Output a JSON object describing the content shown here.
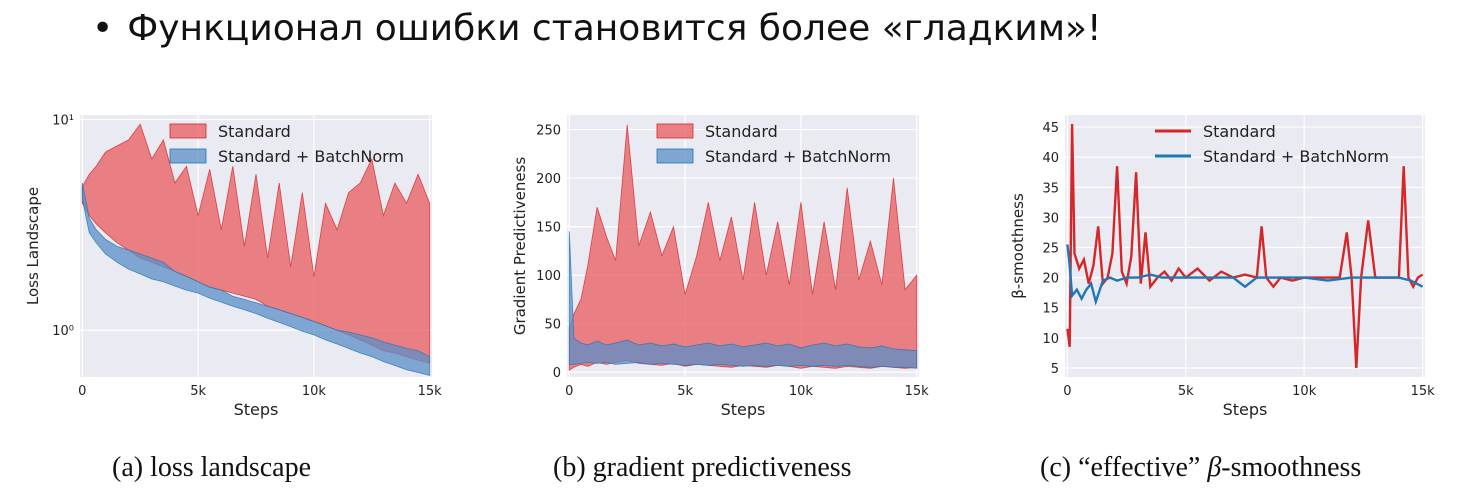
{
  "slide": {
    "bullet": "•",
    "headline": "Функционал ошибки становится более «гладким»!"
  },
  "colors": {
    "standard_fill": "#e8595d",
    "standard_line": "#d62728",
    "bn_fill": "#5b8fc7",
    "bn_line": "#1f77b4",
    "plot_bg": "#eaeaf2",
    "grid": "#ffffff"
  },
  "chart_data": [
    {
      "id": "a",
      "type": "area",
      "ylabel": "Loss Landscape",
      "xlabel": "Steps",
      "yscale": "log",
      "ylim": [
        0.6,
        10.5
      ],
      "xlim": [
        -100,
        15100
      ],
      "x_ticks": [
        0,
        5000,
        10000,
        15000
      ],
      "x_tick_labels": [
        "0",
        "5k",
        "10k",
        "15k"
      ],
      "y_ticks": [
        1,
        10
      ],
      "y_tick_labels": [
        "10⁰",
        "10¹"
      ],
      "legend": {
        "placement": "top-center",
        "entries": [
          "Standard",
          "Standard + BatchNorm"
        ]
      },
      "caption": "(a) loss landscape",
      "series": [
        {
          "name": "Standard",
          "x": [
            0,
            300,
            600,
            1000,
            1500,
            2000,
            2500,
            3000,
            3500,
            4000,
            4500,
            5000,
            5500,
            6000,
            6500,
            7000,
            7500,
            8000,
            8500,
            9000,
            9500,
            10000,
            10500,
            11000,
            11500,
            12000,
            12500,
            13000,
            13500,
            14000,
            14500,
            15000
          ],
          "low": [
            4.0,
            3.5,
            3.2,
            2.9,
            2.6,
            2.4,
            2.2,
            2.1,
            2.0,
            1.9,
            1.8,
            1.7,
            1.6,
            1.55,
            1.5,
            1.45,
            1.4,
            1.3,
            1.25,
            1.2,
            1.15,
            1.1,
            1.05,
            1.0,
            0.95,
            0.9,
            0.85,
            0.8,
            0.78,
            0.75,
            0.72,
            0.7
          ],
          "high": [
            4.8,
            5.5,
            6.0,
            7.0,
            7.5,
            8.0,
            9.5,
            6.5,
            8.0,
            5.0,
            6.0,
            3.5,
            5.8,
            3.0,
            6.0,
            2.5,
            5.5,
            2.2,
            5.0,
            2.0,
            4.5,
            1.8,
            4.0,
            3.0,
            4.5,
            5.0,
            6.5,
            3.5,
            5.0,
            4.0,
            5.5,
            4.0
          ]
        },
        {
          "name": "Standard + BatchNorm",
          "x": [
            0,
            300,
            600,
            1000,
            1500,
            2000,
            2500,
            3000,
            3500,
            4000,
            4500,
            5000,
            5500,
            6000,
            6500,
            7000,
            7500,
            8000,
            8500,
            9000,
            9500,
            10000,
            10500,
            11000,
            11500,
            12000,
            12500,
            13000,
            13500,
            14000,
            14500,
            15000
          ],
          "low": [
            4.2,
            2.9,
            2.6,
            2.3,
            2.1,
            1.95,
            1.85,
            1.75,
            1.7,
            1.62,
            1.55,
            1.5,
            1.42,
            1.36,
            1.3,
            1.25,
            1.2,
            1.14,
            1.09,
            1.04,
            0.99,
            0.95,
            0.9,
            0.86,
            0.82,
            0.78,
            0.75,
            0.71,
            0.68,
            0.65,
            0.63,
            0.61
          ],
          "high": [
            5.0,
            3.4,
            3.0,
            2.7,
            2.5,
            2.4,
            2.3,
            2.2,
            2.1,
            1.9,
            1.8,
            1.7,
            1.6,
            1.55,
            1.45,
            1.4,
            1.35,
            1.3,
            1.25,
            1.2,
            1.15,
            1.1,
            1.05,
            1.0,
            0.98,
            0.95,
            0.92,
            0.88,
            0.85,
            0.82,
            0.8,
            0.75
          ]
        }
      ]
    },
    {
      "id": "b",
      "type": "area",
      "ylabel": "Gradient Predictiveness",
      "xlabel": "Steps",
      "ylim": [
        -5,
        265
      ],
      "xlim": [
        -100,
        15100
      ],
      "x_ticks": [
        0,
        5000,
        10000,
        15000
      ],
      "x_tick_labels": [
        "0",
        "5k",
        "10k",
        "15k"
      ],
      "y_ticks": [
        0,
        50,
        100,
        150,
        200,
        250
      ],
      "y_tick_labels": [
        "0",
        "50",
        "100",
        "150",
        "200",
        "250"
      ],
      "legend": {
        "placement": "top-center",
        "entries": [
          "Standard",
          "Standard + BatchNorm"
        ]
      },
      "caption": "(b) gradient predictiveness",
      "series": [
        {
          "name": "Standard",
          "x": [
            0,
            200,
            500,
            800,
            1200,
            1600,
            2000,
            2500,
            3000,
            3500,
            4000,
            4500,
            5000,
            5500,
            6000,
            6500,
            7000,
            7500,
            8000,
            8500,
            9000,
            9500,
            10000,
            10500,
            11000,
            11500,
            12000,
            12500,
            13000,
            13500,
            14000,
            14500,
            15000
          ],
          "low": [
            2,
            5,
            8,
            6,
            10,
            8,
            10,
            12,
            9,
            8,
            7,
            9,
            6,
            8,
            7,
            6,
            5,
            7,
            6,
            5,
            7,
            6,
            4,
            6,
            5,
            4,
            6,
            5,
            4,
            6,
            5,
            4,
            5
          ],
          "high": [
            45,
            60,
            75,
            110,
            170,
            140,
            115,
            255,
            130,
            165,
            120,
            150,
            80,
            120,
            175,
            115,
            160,
            95,
            175,
            100,
            155,
            90,
            175,
            80,
            155,
            85,
            190,
            95,
            135,
            90,
            200,
            85,
            100
          ]
        },
        {
          "name": "Standard + BatchNorm",
          "x": [
            0,
            200,
            500,
            800,
            1200,
            1600,
            2000,
            2500,
            3000,
            3500,
            4000,
            4500,
            5000,
            5500,
            6000,
            6500,
            7000,
            7500,
            8000,
            8500,
            9000,
            9500,
            10000,
            10500,
            11000,
            11500,
            12000,
            12500,
            13000,
            13500,
            14000,
            14500,
            15000
          ],
          "low": [
            8,
            8,
            9,
            10,
            9,
            10,
            8,
            9,
            10,
            8,
            9,
            8,
            7,
            8,
            7,
            8,
            7,
            6,
            7,
            6,
            7,
            6,
            7,
            6,
            7,
            6,
            7,
            6,
            5,
            6,
            5,
            5,
            4
          ],
          "high": [
            145,
            35,
            30,
            28,
            32,
            28,
            30,
            33,
            28,
            30,
            27,
            29,
            26,
            28,
            30,
            27,
            29,
            26,
            28,
            30,
            27,
            29,
            25,
            28,
            30,
            27,
            29,
            26,
            25,
            27,
            24,
            23,
            22
          ]
        }
      ]
    },
    {
      "id": "c",
      "type": "line",
      "ylabel": "β-smoothness",
      "xlabel": "Steps",
      "ylim": [
        3.5,
        47
      ],
      "xlim": [
        -100,
        15100
      ],
      "x_ticks": [
        0,
        5000,
        10000,
        15000
      ],
      "x_tick_labels": [
        "0",
        "5k",
        "10k",
        "15k"
      ],
      "y_ticks": [
        5,
        10,
        15,
        20,
        25,
        30,
        35,
        40,
        45
      ],
      "y_tick_labels": [
        "5",
        "10",
        "15",
        "20",
        "25",
        "30",
        "35",
        "40",
        "45"
      ],
      "legend": {
        "placement": "top-center",
        "entries": [
          "Standard",
          "Standard + BatchNorm"
        ]
      },
      "caption_prefix": "(c) “effective” ",
      "caption_symbol": "β",
      "caption_suffix": "-smoothness",
      "series": [
        {
          "name": "Standard",
          "x": [
            0,
            100,
            200,
            300,
            500,
            700,
            900,
            1100,
            1300,
            1500,
            1700,
            1900,
            2100,
            2300,
            2500,
            2700,
            2900,
            3100,
            3300,
            3500,
            3800,
            4100,
            4400,
            4700,
            5000,
            5500,
            6000,
            6500,
            7000,
            7500,
            8000,
            8200,
            8400,
            8700,
            9000,
            9500,
            10000,
            10500,
            11000,
            11500,
            11800,
            12000,
            12200,
            12400,
            12700,
            13000,
            13500,
            14000,
            14200,
            14400,
            14600,
            14800,
            15000
          ],
          "y": [
            11.5,
            8.5,
            45.5,
            24,
            21.5,
            23,
            19,
            22,
            28.5,
            19,
            20,
            24,
            38.5,
            21,
            19,
            23.5,
            37.5,
            19,
            27.5,
            18.5,
            20,
            21,
            19.5,
            21.5,
            20,
            21.5,
            19.5,
            21,
            20,
            20.5,
            20,
            28.5,
            20,
            18.5,
            20,
            19.5,
            20,
            20,
            20,
            20,
            27.5,
            20,
            5,
            20,
            29.5,
            20,
            20,
            20,
            38.5,
            20,
            18.5,
            20,
            20.5
          ]
        },
        {
          "name": "Standard + BatchNorm",
          "x": [
            0,
            100,
            200,
            400,
            600,
            800,
            1000,
            1200,
            1500,
            1800,
            2100,
            2500,
            3000,
            3500,
            4000,
            5000,
            6000,
            7000,
            7500,
            8000,
            9000,
            10000,
            11000,
            12000,
            13000,
            14000,
            14500,
            15000
          ],
          "y": [
            25.5,
            22,
            17,
            18,
            16.5,
            18,
            19,
            16,
            19.5,
            20,
            19.5,
            20,
            20,
            20.5,
            20,
            20,
            20,
            20,
            18.5,
            20,
            20,
            20,
            19.5,
            20,
            20,
            20,
            19.5,
            18.5
          ]
        }
      ]
    }
  ]
}
